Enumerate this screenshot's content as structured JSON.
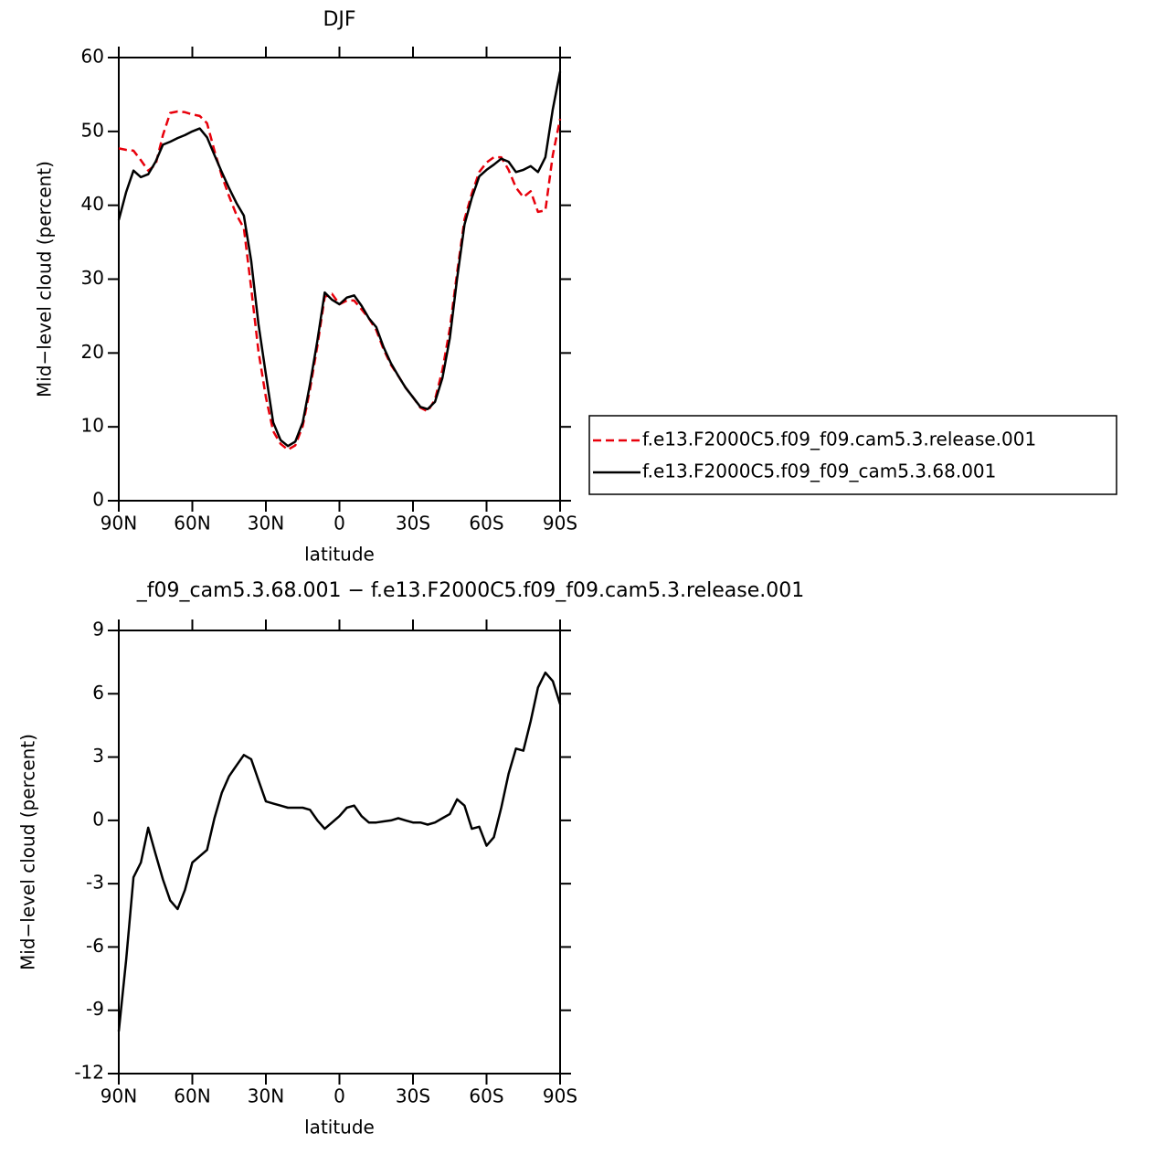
{
  "chart_data": [
    {
      "type": "line",
      "title": "DJF",
      "xlabel": "latitude",
      "ylabel": "Mid−level cloud (percent)",
      "x": [
        90,
        87,
        84,
        81,
        78,
        75,
        72,
        69,
        66,
        63,
        60,
        57,
        54,
        51,
        48,
        45,
        42,
        39,
        36,
        33,
        30,
        27,
        24,
        21,
        18,
        15,
        12,
        9,
        6,
        3,
        0,
        -3,
        -6,
        -9,
        -12,
        -15,
        -18,
        -21,
        -24,
        -27,
        -30,
        -33,
        -36,
        -39,
        -42,
        -45,
        -48,
        -51,
        -54,
        -57,
        -60,
        -63,
        -66,
        -69,
        -72,
        -75,
        -78,
        -81,
        -84,
        -87,
        -90
      ],
      "xlim": [
        90,
        -90
      ],
      "xticks": [
        {
          "value": 90,
          "label": "90N"
        },
        {
          "value": 60,
          "label": "60N"
        },
        {
          "value": 30,
          "label": "30N"
        },
        0,
        {
          "value": -30,
          "label": "30S"
        },
        {
          "value": -60,
          "label": "60S"
        },
        {
          "value": -90,
          "label": "90S"
        }
      ],
      "ylim": [
        0,
        60
      ],
      "yticks": [
        0,
        10,
        20,
        30,
        40,
        50,
        60
      ],
      "series": [
        {
          "name": "f.e13.F2000C5.f09_f09.cam5.3.release.001",
          "color": "#e8000b",
          "dashed": true,
          "values": [
            47.7,
            47.5,
            47.4,
            46.1,
            44.7,
            45.5,
            49.5,
            52.5,
            52.7,
            52.6,
            52.3,
            52.1,
            51.1,
            47.4,
            44.0,
            41.2,
            38.7,
            36.9,
            28.8,
            20.2,
            14.0,
            9.4,
            7.7,
            6.9,
            7.5,
            10.1,
            15.1,
            21.0,
            27.6,
            28.0,
            26.6,
            27.1,
            27.1,
            25.9,
            24.7,
            23.1,
            20.5,
            18.4,
            16.9,
            15.3,
            14.0,
            12.6,
            12.1,
            13.7,
            17.7,
            23.3,
            30.9,
            38.1,
            41.6,
            44.5,
            45.8,
            46.5,
            46.5,
            44.8,
            42.4,
            41.1,
            41.9,
            39.1,
            39.3,
            46.8,
            51.7
          ]
        },
        {
          "name": "f.e13.F2000C5.f09_f09_cam5.3.68.001",
          "color": "#000000",
          "dashed": false,
          "values": [
            38.0,
            41.8,
            44.7,
            43.8,
            44.2,
            45.9,
            48.2,
            48.6,
            49.1,
            49.5,
            50.0,
            50.4,
            49.2,
            46.8,
            44.5,
            42.3,
            40.3,
            38.6,
            32.5,
            23.9,
            17.1,
            10.6,
            8.2,
            7.4,
            8.0,
            10.6,
            15.8,
            21.7,
            28.2,
            27.2,
            26.6,
            27.5,
            27.8,
            26.4,
            24.7,
            23.5,
            20.8,
            18.6,
            16.9,
            15.3,
            14.0,
            12.7,
            12.4,
            13.4,
            16.6,
            22.0,
            30.1,
            37.4,
            41.0,
            43.9,
            44.8,
            45.5,
            46.3,
            45.9,
            44.5,
            44.8,
            45.3,
            44.5,
            46.5,
            53.0,
            58.1
          ]
        }
      ]
    },
    {
      "type": "line",
      "title": "_f09_cam5.3.68.001 − f.e13.F2000C5.f09_f09.cam5.3.release.001",
      "xlabel": "latitude",
      "ylabel": "Mid−level cloud (percent)",
      "x": [
        90,
        87,
        84,
        81,
        78,
        75,
        72,
        69,
        66,
        63,
        60,
        57,
        54,
        51,
        48,
        45,
        42,
        39,
        36,
        33,
        30,
        27,
        24,
        21,
        18,
        15,
        12,
        9,
        6,
        3,
        0,
        -3,
        -6,
        -9,
        -12,
        -15,
        -18,
        -21,
        -24,
        -27,
        -30,
        -33,
        -36,
        -39,
        -42,
        -45,
        -48,
        -51,
        -54,
        -57,
        -60,
        -63,
        -66,
        -69,
        -72,
        -75,
        -78,
        -81,
        -84,
        -87,
        -90
      ],
      "xlim": [
        90,
        -90
      ],
      "xticks": [
        {
          "value": 90,
          "label": "90N"
        },
        {
          "value": 60,
          "label": "60N"
        },
        {
          "value": 30,
          "label": "30N"
        },
        0,
        {
          "value": -30,
          "label": "30S"
        },
        {
          "value": -60,
          "label": "60S"
        },
        {
          "value": -90,
          "label": "90S"
        }
      ],
      "ylim": [
        -12,
        9
      ],
      "yticks": [
        -12,
        -9,
        -6,
        -3,
        0,
        3,
        6,
        9
      ],
      "color": "#000000",
      "values": [
        -10.0,
        -6.6,
        -2.7,
        -2.0,
        -0.35,
        -1.6,
        -2.8,
        -3.8,
        -4.2,
        -3.3,
        -2.0,
        -1.7,
        -1.4,
        0.1,
        1.3,
        2.1,
        2.6,
        3.1,
        2.9,
        1.9,
        0.9,
        0.8,
        0.7,
        0.6,
        0.6,
        0.6,
        0.5,
        0.0,
        -0.4,
        -0.1,
        0.2,
        0.6,
        0.7,
        0.2,
        -0.1,
        -0.1,
        -0.05,
        0.0,
        0.1,
        0.0,
        -0.1,
        -0.1,
        -0.2,
        -0.1,
        0.1,
        0.3,
        1.0,
        0.7,
        -0.4,
        -0.3,
        -1.2,
        -0.8,
        0.6,
        2.2,
        3.4,
        3.3,
        4.7,
        6.3,
        7.0,
        6.6,
        5.5
      ]
    }
  ]
}
